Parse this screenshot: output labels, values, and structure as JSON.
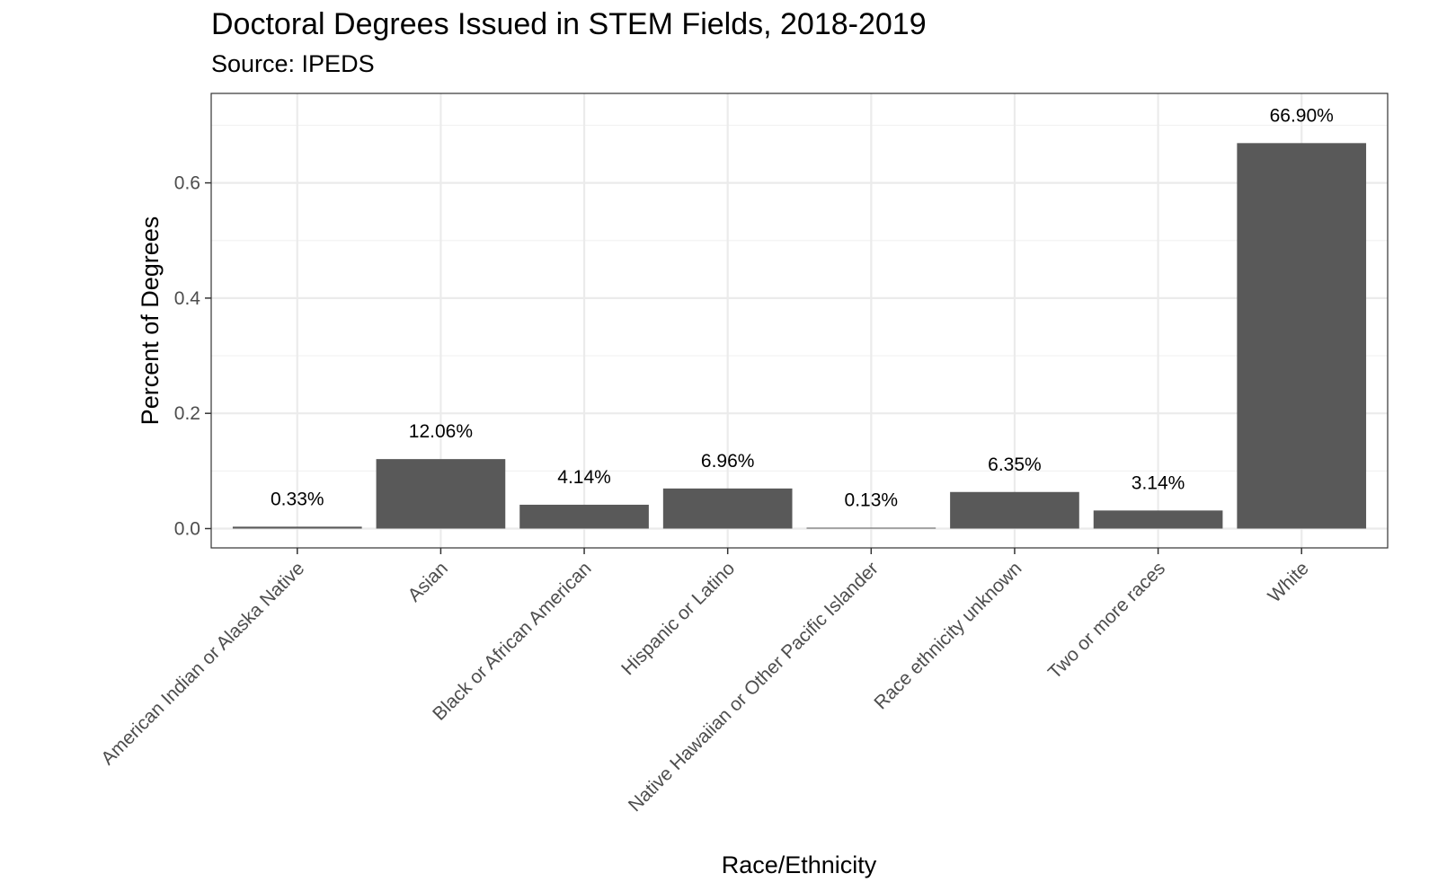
{
  "chart_data": {
    "type": "bar",
    "title": "Doctoral Degrees Issued in STEM Fields, 2018-2019",
    "subtitle": "Source: IPEDS",
    "xlabel": "Race/Ethnicity",
    "ylabel": "Percent of Degrees",
    "categories": [
      "American Indian or Alaska Native",
      "Asian",
      "Black or African American",
      "Hispanic or Latino",
      "Native Hawaiian or Other Pacific Islander",
      "Race ethnicity unknown",
      "Two or more races",
      "White"
    ],
    "values": [
      0.0033,
      0.1206,
      0.0414,
      0.0696,
      0.0013,
      0.0635,
      0.0314,
      0.669
    ],
    "data_labels": [
      "0.33%",
      "12.06%",
      "4.14%",
      "6.96%",
      "0.13%",
      "6.35%",
      "3.14%",
      "66.90%"
    ],
    "yticks": [
      0.0,
      0.2,
      0.4,
      0.6
    ],
    "ytick_labels": [
      "0.0",
      "0.2",
      "0.4",
      "0.6"
    ],
    "ylim": [
      -0.035,
      0.755
    ],
    "grid": true,
    "legend": "none",
    "colors": {
      "bar": "#595959",
      "panel_border": "#333333",
      "grid_major": "#ebebeb",
      "grid_minor": "#f2f2f2",
      "tick_text": "#4d4d4d"
    }
  }
}
